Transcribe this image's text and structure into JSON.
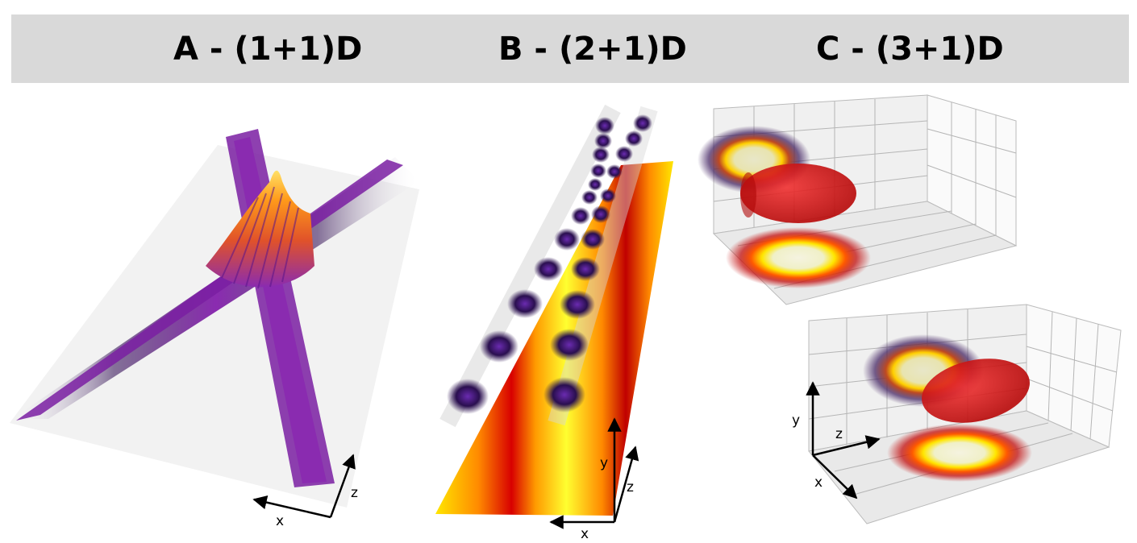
{
  "panels": {
    "a": {
      "title": "A - (1+1)D",
      "axes": {
        "x": "x",
        "z": "z"
      }
    },
    "b": {
      "title": "B - (2+1)D",
      "axes": {
        "x": "x",
        "y": "y",
        "z": "z"
      }
    },
    "c": {
      "title": "C - (3+1)D",
      "axes": {
        "x": "x",
        "y": "y",
        "z": "z"
      }
    }
  },
  "colors": {
    "header_band": "#d9d9d9",
    "purple": "#7a1fa2",
    "dark_purple": "#2a0f4f",
    "orange": "#ff7a1a",
    "yellow": "#ffff3a",
    "red": "#d01010"
  }
}
